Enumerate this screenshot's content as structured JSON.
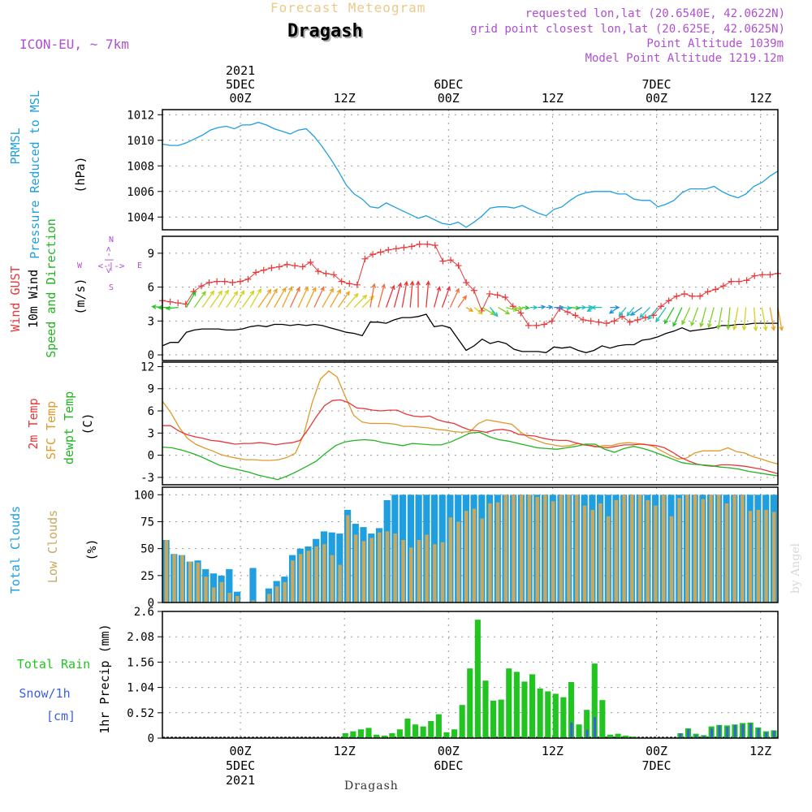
{
  "header": {
    "subtitle": "Forecast Meteogram",
    "title": "Dragash",
    "model": "ICON-EU, ~ 7km",
    "requested": "requested lon,lat (20.6540E, 42.0622N)",
    "gridpoint": "grid point closest lon,lat (20.625E, 42.0625N)",
    "point_alt": "Point Altitude 1039m",
    "model_alt": "Model Point Altitude 1219.12m",
    "watermark": "by Angel",
    "footer": "Dragash"
  },
  "colors": {
    "pressure": "#1f9fe0",
    "gust": "#e8383a",
    "wind": "#000000",
    "temp2m": "#e8383a",
    "sfctemp": "#e09a2c",
    "dewpt": "#22b422",
    "total_clouds": "#1f9fe0",
    "low_clouds": "#c9a85e",
    "rain": "#22c422",
    "snow": "#3a5fe0",
    "purple": "#b04fd0"
  },
  "chart_data": {
    "type": "meteogram",
    "x_hours": [
      -9,
      62
    ],
    "top_time_axis": [
      {
        "hour": 0,
        "lines": [
          "2021",
          "5DEC",
          "00Z"
        ]
      },
      {
        "hour": 12,
        "lines": [
          "",
          "",
          "12Z"
        ]
      },
      {
        "hour": 24,
        "lines": [
          "",
          "6DEC",
          "00Z"
        ]
      },
      {
        "hour": 36,
        "lines": [
          "",
          "",
          "12Z"
        ]
      },
      {
        "hour": 48,
        "lines": [
          "",
          "7DEC",
          "00Z"
        ]
      },
      {
        "hour": 60,
        "lines": [
          "",
          "",
          "12Z"
        ]
      }
    ],
    "bottom_time_axis": [
      {
        "hour": 0,
        "lines": [
          "00Z",
          "5DEC",
          "2021"
        ]
      },
      {
        "hour": 12,
        "lines": [
          "12Z",
          "",
          ""
        ]
      },
      {
        "hour": 24,
        "lines": [
          "00Z",
          "6DEC",
          ""
        ]
      },
      {
        "hour": 36,
        "lines": [
          "12Z",
          "",
          ""
        ]
      },
      {
        "hour": 48,
        "lines": [
          "00Z",
          "7DEC",
          ""
        ]
      },
      {
        "hour": 60,
        "lines": [
          "12Z",
          "",
          ""
        ]
      }
    ],
    "pressure": {
      "labels": [
        "PRMSL",
        "Pressure Reduced to MSL"
      ],
      "unit": "(hPa)",
      "ylim": [
        1003,
        1012.4
      ],
      "ticks": [
        1004,
        1006,
        1008,
        1010,
        1012
      ],
      "values": [
        1009.7,
        1009.6,
        1009.6,
        1009.8,
        1010.1,
        1010.4,
        1010.8,
        1011.0,
        1011.1,
        1010.9,
        1011.2,
        1011.2,
        1011.4,
        1011.2,
        1010.9,
        1010.7,
        1010.5,
        1010.8,
        1010.9,
        1010.3,
        1009.5,
        1008.6,
        1007.6,
        1006.5,
        1005.8,
        1005.4,
        1004.8,
        1004.7,
        1005.1,
        1004.8,
        1004.5,
        1004.2,
        1003.9,
        1004.1,
        1003.8,
        1003.5,
        1003.4,
        1003.6,
        1003.2,
        1003.6,
        1004.1,
        1004.7,
        1004.8,
        1004.8,
        1004.7,
        1004.9,
        1004.6,
        1004.3,
        1004.1,
        1004.6,
        1004.8,
        1005.3,
        1005.7,
        1005.9,
        1006.0,
        1006.0,
        1006.0,
        1005.8,
        1005.8,
        1005.4,
        1005.3,
        1005.3,
        1004.8,
        1005.0,
        1005.3,
        1005.9,
        1006.2,
        1006.2,
        1006.2,
        1006.4,
        1006.0,
        1005.7,
        1005.5,
        1005.8,
        1006.4,
        1006.7,
        1007.2,
        1007.6
      ]
    },
    "wind": {
      "labels": [
        "Wind GUST",
        "10m Wind",
        "Speed and Direction"
      ],
      "unit": "(m/s)",
      "ylim": [
        -0.5,
        10.5
      ],
      "ticks": [
        0,
        3,
        6,
        9
      ],
      "compass": {
        "n": "N",
        "s": "S",
        "w": "W",
        "e": "E",
        "arrow_h": "<-|->",
        "arrow_v": "<-|->"
      },
      "gust": [
        4.8,
        4.7,
        4.6,
        4.5,
        5.6,
        6.1,
        6.4,
        6.5,
        6.5,
        6.4,
        6.5,
        6.7,
        7.3,
        7.5,
        7.7,
        7.8,
        8.0,
        7.9,
        7.8,
        8.2,
        7.4,
        7.2,
        7.1,
        6.5,
        6.3,
        6.2,
        8.5,
        8.9,
        9.1,
        9.3,
        9.4,
        9.5,
        9.6,
        9.8,
        9.8,
        9.7,
        8.3,
        8.4,
        7.9,
        6.4,
        5.7,
        3.9,
        5.4,
        5.3,
        5.1,
        4.3,
        3.7,
        2.6,
        2.6,
        2.7,
        3.0,
        4.1,
        3.8,
        3.5,
        3.1,
        3.0,
        2.9,
        2.8,
        3.0,
        3.4,
        2.9,
        3.1,
        3.3,
        3.5,
        4.3,
        4.8,
        5.2,
        5.4,
        5.2,
        5.2,
        5.6,
        5.8,
        6.1,
        6.5,
        6.5,
        6.6,
        7.0,
        7.1,
        7.1,
        7.2
      ],
      "speed": [
        0.8,
        1.1,
        1.1,
        2.0,
        2.2,
        2.3,
        2.3,
        2.3,
        2.2,
        2.2,
        2.3,
        2.5,
        2.6,
        2.5,
        2.7,
        2.7,
        2.6,
        2.7,
        2.6,
        2.7,
        2.6,
        2.4,
        2.2,
        2.0,
        1.9,
        1.7,
        2.9,
        2.9,
        2.8,
        3.1,
        3.3,
        3.3,
        3.4,
        3.6,
        2.5,
        2.6,
        2.4,
        1.4,
        0.4,
        0.8,
        1.4,
        1.0,
        1.2,
        1.0,
        0.5,
        0.3,
        0.3,
        0.3,
        0.2,
        0.7,
        0.6,
        0.7,
        0.4,
        0.2,
        0.4,
        0.8,
        0.6,
        0.8,
        0.9,
        0.9,
        1.3,
        1.4,
        1.6,
        1.9,
        2.1,
        2.4,
        2.1,
        2.2,
        2.3,
        2.4,
        2.6,
        2.6,
        2.7,
        2.7,
        2.8,
        2.8,
        2.8,
        2.8
      ],
      "dir_deg": [
        95,
        90,
        85,
        210,
        215,
        215,
        215,
        210,
        215,
        210,
        215,
        210,
        215,
        210,
        210,
        205,
        205,
        205,
        205,
        205,
        210,
        210,
        215,
        220,
        225,
        225,
        190,
        195,
        200,
        195,
        190,
        185,
        180,
        185,
        195,
        200,
        205,
        215,
        300,
        310,
        300,
        320,
        300,
        285,
        280,
        275,
        270,
        265,
        265,
        270,
        275,
        275,
        270,
        265,
        60,
        90,
        270,
        55,
        40,
        40,
        55,
        45,
        40,
        35,
        30,
        25,
        25,
        20,
        15,
        15,
        10,
        5,
        10,
        5,
        355,
        350,
        350,
        350
      ]
    },
    "temperature": {
      "labels": [
        "2m Temp",
        "SFC Temp",
        "dewpt Temp"
      ],
      "unit": "(C)",
      "ylim": [
        -4,
        12.6
      ],
      "ticks": [
        -3,
        0,
        3,
        6,
        9,
        12
      ],
      "temp2m": [
        4.0,
        4.0,
        3.3,
        2.8,
        2.5,
        2.3,
        2.0,
        1.9,
        1.7,
        1.5,
        1.6,
        1.6,
        1.7,
        1.6,
        1.4,
        1.6,
        1.7,
        2.0,
        3.5,
        5.2,
        6.7,
        7.4,
        7.5,
        7.1,
        6.4,
        6.3,
        6.1,
        6.0,
        6.1,
        6.1,
        5.6,
        5.3,
        5.2,
        5.3,
        4.8,
        4.5,
        4.3,
        3.8,
        3.4,
        3.3,
        3.1,
        3.4,
        3.5,
        3.3,
        2.8,
        2.7,
        2.6,
        2.3,
        2.1,
        2.0,
        2.0,
        1.7,
        1.4,
        1.3,
        1.1,
        1.0,
        1.2,
        1.4,
        1.4,
        1.5,
        1.4,
        1.3,
        1.0,
        0.4,
        -0.3,
        -0.8,
        -1.2,
        -1.4,
        -1.5,
        -1.3,
        -1.3,
        -1.4,
        -1.5,
        -1.7,
        -1.9,
        -2.2,
        -2.5
      ],
      "sfctemp": [
        7.3,
        5.8,
        3.8,
        2.3,
        1.5,
        1.0,
        0.6,
        0.1,
        -0.2,
        -0.4,
        -0.6,
        -0.6,
        -0.7,
        -0.7,
        -0.6,
        -0.3,
        0.3,
        2.8,
        7.1,
        10.3,
        11.4,
        10.6,
        7.9,
        5.4,
        4.5,
        4.3,
        4.3,
        4.3,
        4.2,
        3.9,
        3.9,
        3.8,
        3.7,
        3.5,
        3.4,
        3.2,
        3.1,
        3.2,
        4.3,
        4.8,
        4.6,
        4.4,
        4.2,
        3.2,
        2.4,
        2.0,
        1.6,
        1.4,
        1.2,
        1.3,
        1.6,
        1.4,
        1.1,
        1.3,
        1.3,
        1.6,
        1.7,
        1.6,
        1.5,
        1.2,
        0.6,
        0.0,
        -0.5,
        -0.4,
        0.3,
        0.6,
        0.6,
        0.6,
        1.0,
        0.5,
        0.3,
        -0.2,
        -0.5,
        -0.9,
        -1.2
      ],
      "dewpt": [
        1.1,
        1.0,
        0.7,
        0.3,
        -0.2,
        -0.8,
        -1.4,
        -1.7,
        -2.0,
        -2.3,
        -2.7,
        -3.0,
        -3.3,
        -2.8,
        -2.2,
        -1.5,
        -0.8,
        0.3,
        1.3,
        1.8,
        2.0,
        2.1,
        2.0,
        1.7,
        1.5,
        1.3,
        1.6,
        1.5,
        1.4,
        1.4,
        1.8,
        2.4,
        3.0,
        3.1,
        2.5,
        2.1,
        1.9,
        1.6,
        1.3,
        1.0,
        0.9,
        0.8,
        1.0,
        1.2,
        1.5,
        1.5,
        0.8,
        0.4,
        0.9,
        1.2,
        0.9,
        0.5,
        0.0,
        -0.5,
        -1.0,
        -1.2,
        -1.3,
        -1.4,
        -1.6,
        -1.7,
        -1.9,
        -2.2,
        -2.4,
        -2.6,
        -2.8
      ]
    },
    "clouds": {
      "labels": [
        "Total Clouds",
        "Low Clouds"
      ],
      "unit": "(%)",
      "ylim": [
        0,
        107
      ],
      "ticks": [
        0,
        25,
        50,
        75,
        100
      ],
      "total": [
        58,
        45,
        44,
        38,
        39,
        31,
        27,
        25,
        31,
        10,
        0,
        32,
        0,
        13,
        20,
        24,
        44,
        50,
        52,
        59,
        66,
        65,
        64,
        86,
        73,
        70,
        64,
        69,
        95,
        100,
        100,
        100,
        100,
        100,
        100,
        100,
        100,
        100,
        100,
        100,
        100,
        100,
        100,
        100,
        100,
        100,
        100,
        100,
        100,
        100,
        100,
        100,
        100,
        100,
        100,
        100,
        100,
        100,
        100,
        100,
        100,
        100,
        100,
        100,
        100,
        100,
        100,
        100,
        100,
        100,
        100,
        100,
        100,
        100,
        100,
        100,
        100,
        100
      ],
      "low": [
        58,
        45,
        44,
        38,
        37,
        24,
        14,
        19,
        9,
        6,
        0,
        2,
        0,
        8,
        15,
        19,
        39,
        45,
        48,
        52,
        54,
        44,
        35,
        81,
        63,
        57,
        60,
        65,
        66,
        64,
        58,
        51,
        58,
        63,
        54,
        56,
        79,
        75,
        85,
        87,
        78,
        92,
        93,
        100,
        100,
        100,
        100,
        98,
        100,
        94,
        100,
        100,
        100,
        90,
        86,
        92,
        80,
        95,
        100,
        100,
        100,
        95,
        90,
        100,
        80,
        97,
        100,
        100,
        96,
        100,
        100,
        92,
        100,
        100,
        85,
        86,
        86,
        84
      ],
      "watermark": "by Angel"
    },
    "precip": {
      "labels": [
        "Total  Rain",
        "Snow/1h",
        "[cm]"
      ],
      "unit": "1hr Precip (mm)",
      "ylim": [
        0,
        2.6
      ],
      "ticks": [
        0,
        0.52,
        1.04,
        1.56,
        2.08,
        2.6
      ],
      "rain": [
        0,
        0,
        0,
        0,
        0,
        0,
        0,
        0,
        0,
        0,
        0,
        0,
        0,
        0,
        0,
        0,
        0,
        0,
        0,
        0,
        0,
        0,
        0,
        0.1,
        0.14,
        0.18,
        0.21,
        0.07,
        0.05,
        0.1,
        0.18,
        0.4,
        0.28,
        0.24,
        0.35,
        0.49,
        0.12,
        0.18,
        0.68,
        1.43,
        2.43,
        1.18,
        0.77,
        0.79,
        1.43,
        1.36,
        1.16,
        1.31,
        1.02,
        0.96,
        0.91,
        0.84,
        1.15,
        0.28,
        0.58,
        1.53,
        0.78,
        0.07,
        0.09,
        0.05,
        0.03,
        0,
        0,
        0,
        0,
        0,
        0.1,
        0.2,
        0.09,
        0.06,
        0.24,
        0.27,
        0.26,
        0.28,
        0.31,
        0.32,
        0.22,
        0.14,
        0.16
      ],
      "snow": [
        0,
        0,
        0,
        0,
        0,
        0,
        0,
        0,
        0,
        0,
        0,
        0,
        0,
        0,
        0,
        0,
        0,
        0,
        0,
        0,
        0,
        0,
        0,
        0,
        0,
        0,
        0,
        0,
        0,
        0,
        0,
        0,
        0,
        0,
        0,
        0,
        0,
        0,
        0,
        0,
        0,
        0,
        0,
        0,
        0,
        0,
        0,
        0,
        0,
        0,
        0,
        0,
        0.32,
        0,
        0.17,
        0.43,
        0,
        0,
        0,
        0,
        0,
        0,
        0,
        0,
        0,
        0,
        0.1,
        0.18,
        0.06,
        0.05,
        0.2,
        0.26,
        0.23,
        0.27,
        0.28,
        0.3,
        0.2,
        0.12,
        0.15
      ]
    }
  }
}
